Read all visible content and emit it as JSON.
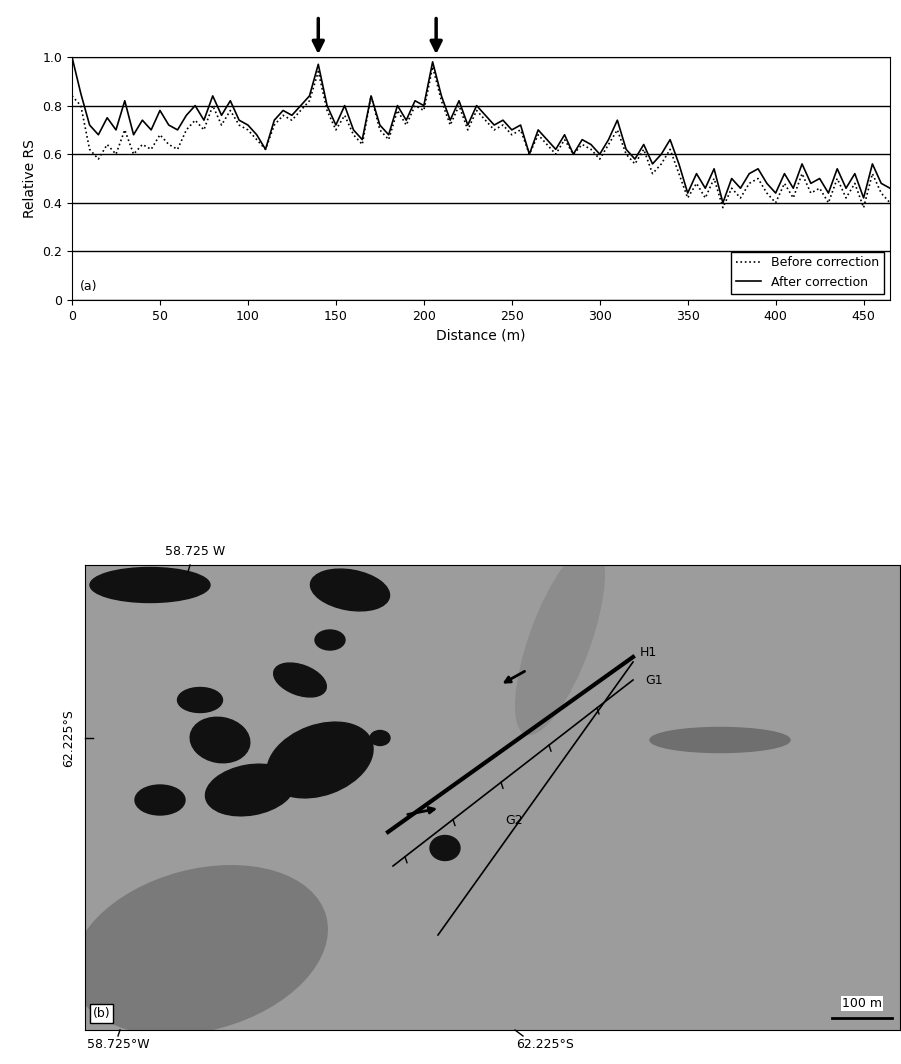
{
  "chart_data": [
    {
      "type": "line",
      "panel_label": "(a)",
      "xlabel": "Distance (m)",
      "ylabel": "Relative RS",
      "x": [
        0,
        5,
        10,
        15,
        20,
        25,
        30,
        35,
        40,
        45,
        50,
        55,
        60,
        65,
        70,
        75,
        80,
        85,
        90,
        95,
        100,
        105,
        110,
        115,
        120,
        125,
        130,
        135,
        140,
        145,
        150,
        155,
        160,
        165,
        170,
        175,
        180,
        185,
        190,
        195,
        200,
        205,
        210,
        215,
        220,
        225,
        230,
        235,
        240,
        245,
        250,
        255,
        260,
        265,
        270,
        275,
        280,
        285,
        290,
        295,
        300,
        305,
        310,
        315,
        320,
        325,
        330,
        335,
        340,
        345,
        350,
        355,
        360,
        365,
        370,
        375,
        380,
        385,
        390,
        395,
        400,
        405,
        410,
        415,
        420,
        425,
        430,
        435,
        440,
        445,
        450,
        455,
        460,
        465
      ],
      "series": [
        {
          "name": "Before correction",
          "color": "#000000",
          "line_style": "dotted",
          "values": [
            0.84,
            0.8,
            0.62,
            0.58,
            0.64,
            0.6,
            0.7,
            0.6,
            0.64,
            0.62,
            0.68,
            0.64,
            0.62,
            0.7,
            0.74,
            0.7,
            0.8,
            0.72,
            0.78,
            0.72,
            0.7,
            0.66,
            0.62,
            0.72,
            0.76,
            0.74,
            0.78,
            0.82,
            0.94,
            0.78,
            0.7,
            0.76,
            0.68,
            0.64,
            0.84,
            0.7,
            0.66,
            0.78,
            0.72,
            0.8,
            0.78,
            0.96,
            0.82,
            0.72,
            0.8,
            0.7,
            0.78,
            0.74,
            0.7,
            0.72,
            0.68,
            0.7,
            0.6,
            0.68,
            0.64,
            0.6,
            0.66,
            0.6,
            0.64,
            0.62,
            0.58,
            0.64,
            0.7,
            0.6,
            0.56,
            0.62,
            0.52,
            0.56,
            0.62,
            0.52,
            0.42,
            0.48,
            0.42,
            0.5,
            0.38,
            0.46,
            0.42,
            0.48,
            0.5,
            0.44,
            0.4,
            0.48,
            0.42,
            0.52,
            0.44,
            0.46,
            0.4,
            0.5,
            0.42,
            0.48,
            0.38,
            0.52,
            0.44,
            0.4
          ]
        },
        {
          "name": "After correction",
          "color": "#000000",
          "line_style": "solid",
          "values": [
            1.0,
            0.85,
            0.72,
            0.68,
            0.75,
            0.7,
            0.82,
            0.68,
            0.74,
            0.7,
            0.78,
            0.72,
            0.7,
            0.76,
            0.8,
            0.74,
            0.84,
            0.76,
            0.82,
            0.74,
            0.72,
            0.68,
            0.62,
            0.74,
            0.78,
            0.76,
            0.8,
            0.84,
            0.97,
            0.8,
            0.72,
            0.8,
            0.7,
            0.66,
            0.84,
            0.72,
            0.68,
            0.8,
            0.74,
            0.82,
            0.8,
            0.98,
            0.84,
            0.74,
            0.82,
            0.72,
            0.8,
            0.76,
            0.72,
            0.74,
            0.7,
            0.72,
            0.6,
            0.7,
            0.66,
            0.62,
            0.68,
            0.6,
            0.66,
            0.64,
            0.6,
            0.66,
            0.74,
            0.62,
            0.58,
            0.64,
            0.56,
            0.6,
            0.66,
            0.56,
            0.44,
            0.52,
            0.46,
            0.54,
            0.4,
            0.5,
            0.46,
            0.52,
            0.54,
            0.48,
            0.44,
            0.52,
            0.46,
            0.56,
            0.48,
            0.5,
            0.44,
            0.54,
            0.46,
            0.52,
            0.42,
            0.56,
            0.48,
            0.46
          ]
        }
      ],
      "xlim": [
        0,
        465
      ],
      "ylim": [
        0,
        1.0
      ],
      "xticks": [
        0,
        50,
        100,
        150,
        200,
        250,
        300,
        350,
        400,
        450
      ],
      "yticks": [
        0,
        0.2,
        0.4,
        0.6,
        0.8,
        1.0
      ],
      "grid": true,
      "legend": "lower right",
      "arrows_x": [
        140,
        207
      ]
    },
    {
      "type": "image",
      "panel_label": "(b)",
      "labels": {
        "top": "58.725 W",
        "left": "62.225°S",
        "bottom_left": "58.725°W",
        "bottom_right": "62.225°S"
      },
      "lines": [
        "H1",
        "G1",
        "G2"
      ],
      "scale_bar": "100 m"
    }
  ]
}
